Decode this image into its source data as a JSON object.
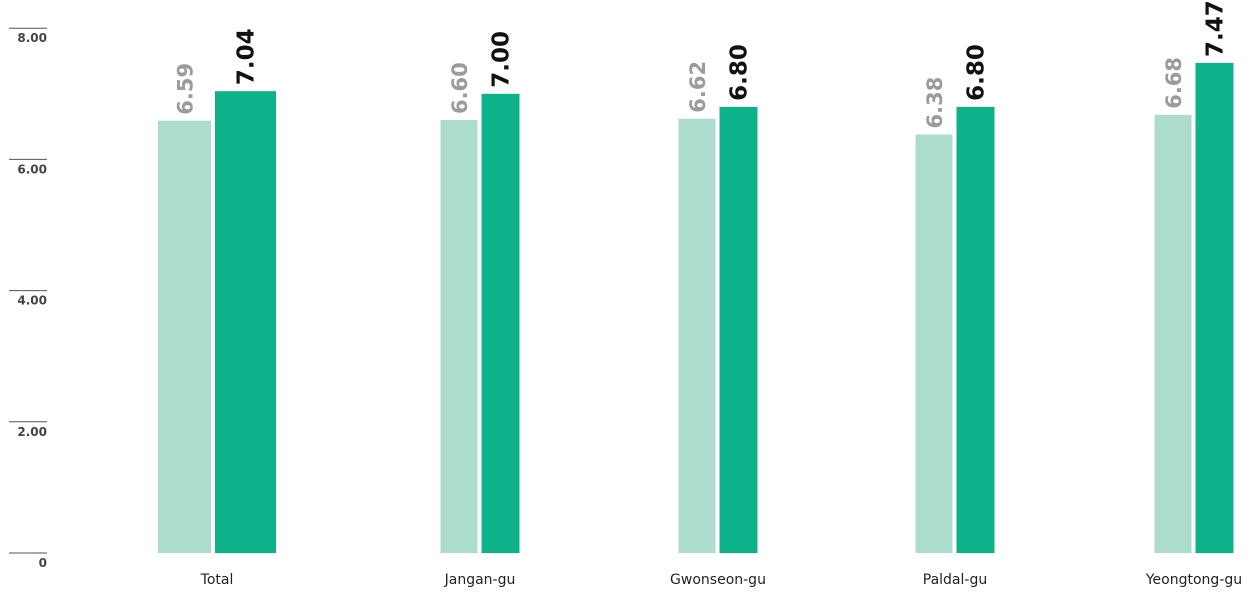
{
  "chart_data": {
    "type": "bar",
    "categories": [
      "Total",
      "Jangan-gu",
      "Gwonseon-gu",
      "Paldal-gu",
      "Yeongtong-gu"
    ],
    "series": [
      {
        "values": [
          6.59,
          6.6,
          6.62,
          6.38,
          6.68
        ],
        "color": "#acdccc"
      },
      {
        "values": [
          7.04,
          7.0,
          6.8,
          6.8,
          7.47
        ],
        "color": "#0db28a"
      }
    ],
    "value_labels": [
      [
        "6.59",
        "6.60",
        "6.62",
        "6.38",
        "6.68"
      ],
      [
        "7.04",
        "7.00",
        "6.80",
        "6.80",
        "7.47"
      ]
    ],
    "yticks": [
      0,
      2,
      4,
      6,
      8
    ],
    "ytick_labels": [
      "0",
      "2.00",
      "4.00",
      "6.00",
      "8.00"
    ],
    "ylim": [
      0,
      8
    ],
    "title": "",
    "xlabel": "",
    "ylabel": "",
    "grid": false,
    "legend": "none"
  }
}
